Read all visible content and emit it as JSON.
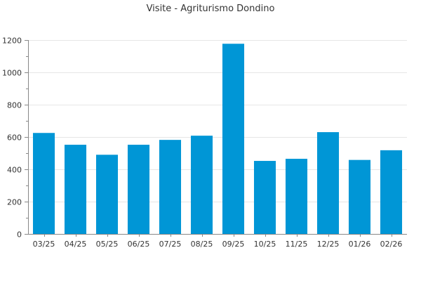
{
  "chart_data": {
    "type": "bar",
    "title": "Visite - Agriturismo Dondino",
    "xlabel": "",
    "ylabel": "",
    "categories": [
      "03/25",
      "04/25",
      "05/25",
      "06/25",
      "07/25",
      "08/25",
      "09/25",
      "10/25",
      "11/25",
      "12/25",
      "01/26",
      "02/26"
    ],
    "values": [
      625,
      552,
      490,
      552,
      582,
      608,
      1177,
      452,
      465,
      630,
      458,
      518
    ],
    "ylim": [
      0,
      1200
    ],
    "yticks": [
      0,
      200,
      400,
      600,
      800,
      1000,
      1200
    ],
    "grid": true,
    "legend": "none",
    "colors": {
      "bar": "#0096d6",
      "grid": "#e6e6e6",
      "axis": "#888888"
    }
  }
}
